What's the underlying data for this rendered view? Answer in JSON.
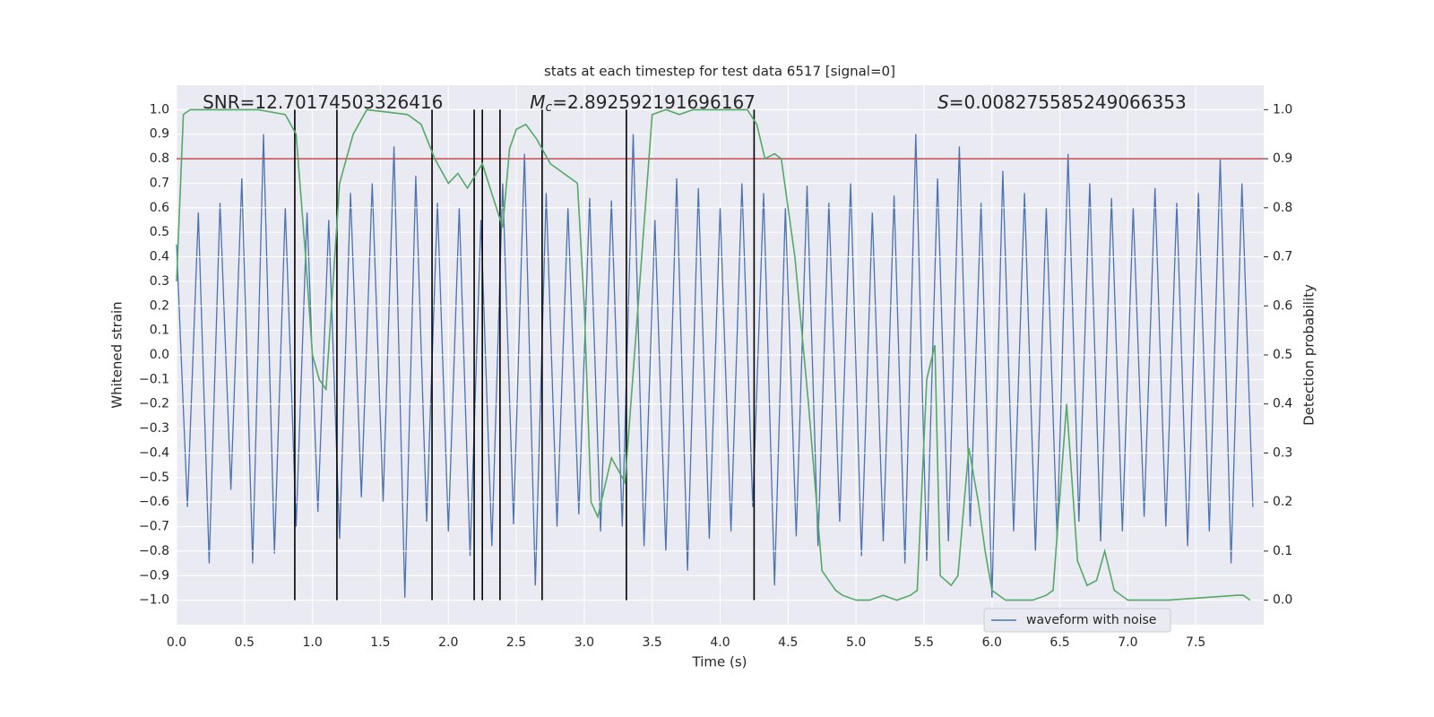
{
  "chart_data": {
    "type": "line",
    "title": "stats at each timestep for test data 6517 [signal=0]",
    "xlabel": "Time (s)",
    "ylabel": "Whitened strain",
    "y2label": "Detection probability",
    "xlim": [
      0,
      8
    ],
    "ylim": [
      -1.1,
      1.1
    ],
    "y2lim": [
      -0.05,
      1.05
    ],
    "grid": true,
    "background": "#eaeaf2",
    "legend_loc": "lower right",
    "xticks": [
      {
        "value": 0,
        "label": "0.0"
      },
      0.5,
      {
        "value": 1,
        "label": "1.0"
      },
      1.5,
      {
        "value": 2,
        "label": "2.0"
      },
      2.5,
      {
        "value": 3,
        "label": "3.0"
      },
      3.5,
      {
        "value": 4,
        "label": "4.0"
      },
      4.5,
      {
        "value": 5,
        "label": "5.0"
      },
      5.5,
      {
        "value": 6,
        "label": "6.0"
      },
      6.5,
      {
        "value": 7,
        "label": "7.0"
      },
      7.5
    ],
    "yticks": [
      {
        "value": -1,
        "label": "−1.0"
      },
      {
        "value": -0.9,
        "label": "−0.9"
      },
      {
        "value": -0.8,
        "label": "−0.8"
      },
      {
        "value": -0.7,
        "label": "−0.7"
      },
      {
        "value": -0.6,
        "label": "−0.6"
      },
      {
        "value": -0.5,
        "label": "−0.5"
      },
      {
        "value": -0.4,
        "label": "−0.4"
      },
      {
        "value": -0.3,
        "label": "−0.3"
      },
      {
        "value": -0.2,
        "label": "−0.2"
      },
      {
        "value": -0.1,
        "label": "−0.1"
      },
      {
        "value": 0,
        "label": "0.0"
      },
      0.1,
      0.2,
      0.3,
      0.4,
      0.5,
      0.6,
      0.7,
      0.8,
      0.9,
      {
        "value": 1,
        "label": "1.0"
      }
    ],
    "y2ticks": [
      {
        "value": 0,
        "label": "0.0"
      },
      0.1,
      0.2,
      0.3,
      0.4,
      0.5,
      0.6,
      0.7,
      0.8,
      0.9,
      {
        "value": 1,
        "label": "1.0"
      }
    ],
    "series": [
      {
        "name": "waveform with noise",
        "color": "#4c72b0",
        "x": [
          0,
          0.08,
          0.16,
          0.24,
          0.32,
          0.4,
          0.48,
          0.56,
          0.64,
          0.72,
          0.8,
          0.88,
          0.96,
          1.04,
          1.12,
          1.2,
          1.28,
          1.36,
          1.44,
          1.52,
          1.6,
          1.68,
          1.76,
          1.84,
          1.92,
          2,
          2.08,
          2.16,
          2.24,
          2.32,
          2.4,
          2.48,
          2.56,
          2.64,
          2.72,
          2.8,
          2.88,
          2.96,
          3.04,
          3.12,
          3.2,
          3.28,
          3.36,
          3.44,
          3.52,
          3.6,
          3.68,
          3.76,
          3.84,
          3.92,
          4,
          4.08,
          4.16,
          4.24,
          4.32,
          4.4,
          4.48,
          4.56,
          4.64,
          4.72,
          4.8,
          4.88,
          4.96,
          5.04,
          5.12,
          5.2,
          5.28,
          5.36,
          5.44,
          5.52,
          5.6,
          5.68,
          5.76,
          5.84,
          5.92,
          6,
          6.08,
          6.16,
          6.24,
          6.32,
          6.4,
          6.48,
          6.56,
          6.64,
          6.72,
          6.8,
          6.88,
          6.96,
          7.04,
          7.12,
          7.2,
          7.28,
          7.36,
          7.44,
          7.52,
          7.6,
          7.68,
          7.76,
          7.84,
          7.92
        ],
        "values": [
          0.45,
          -0.62,
          0.58,
          -0.85,
          0.62,
          -0.55,
          0.72,
          -0.85,
          0.9,
          -0.81,
          0.6,
          -0.7,
          0.58,
          -0.64,
          0.55,
          -0.75,
          0.66,
          -0.58,
          0.7,
          -0.6,
          0.85,
          -0.99,
          0.73,
          -0.68,
          0.62,
          -0.72,
          0.6,
          -0.82,
          0.55,
          -0.78,
          0.7,
          -0.69,
          0.82,
          -0.94,
          0.66,
          -0.7,
          0.6,
          -0.65,
          0.64,
          -0.72,
          0.63,
          -0.7,
          0.9,
          -0.78,
          0.55,
          -0.8,
          0.72,
          -0.88,
          0.68,
          -0.75,
          0.6,
          -0.72,
          0.7,
          -0.62,
          0.66,
          -0.94,
          0.6,
          -0.74,
          0.69,
          -0.78,
          0.62,
          -0.68,
          0.7,
          -0.82,
          0.58,
          -0.76,
          0.65,
          -0.85,
          0.9,
          -0.84,
          0.72,
          -0.76,
          0.85,
          -0.7,
          0.62,
          -0.99,
          0.75,
          -0.72,
          0.66,
          -0.8,
          0.6,
          -0.75,
          0.82,
          -0.68,
          0.7,
          -0.76,
          0.64,
          -0.72,
          0.6,
          -0.66,
          0.68,
          -0.7,
          0.62,
          -0.78,
          0.66,
          -0.72,
          0.8,
          -0.85,
          0.7,
          -0.62
        ]
      },
      {
        "color": "#55a868",
        "axis": "y2",
        "x": [
          0,
          0.05,
          0.1,
          0.6,
          0.8,
          0.88,
          0.95,
          1.0,
          1.05,
          1.1,
          1.2,
          1.3,
          1.4,
          1.7,
          1.8,
          1.9,
          2.0,
          2.07,
          2.14,
          2.25,
          2.33,
          2.4,
          2.45,
          2.5,
          2.57,
          2.65,
          2.75,
          2.85,
          2.95,
          3.0,
          3.05,
          3.1,
          3.2,
          3.3,
          3.5,
          3.6,
          3.7,
          3.8,
          4.2,
          4.27,
          4.33,
          4.4,
          4.45,
          4.55,
          4.65,
          4.75,
          4.85,
          4.9,
          5.0,
          5.1,
          5.2,
          5.3,
          5.4,
          5.45,
          5.52,
          5.58,
          5.62,
          5.7,
          5.75,
          5.83,
          5.9,
          5.95,
          6.0,
          6.1,
          6.3,
          6.4,
          6.45,
          6.55,
          6.63,
          6.7,
          6.77,
          6.83,
          6.9,
          7.0,
          7.3,
          7.8,
          7.85,
          7.9
        ],
        "values": [
          0.65,
          0.99,
          1.0,
          1.0,
          0.99,
          0.95,
          0.7,
          0.5,
          0.45,
          0.43,
          0.85,
          0.95,
          1.0,
          0.99,
          0.97,
          0.9,
          0.85,
          0.87,
          0.84,
          0.89,
          0.82,
          0.76,
          0.92,
          0.96,
          0.97,
          0.94,
          0.89,
          0.87,
          0.85,
          0.6,
          0.2,
          0.17,
          0.29,
          0.24,
          0.99,
          1.0,
          0.99,
          1.0,
          1.0,
          0.97,
          0.9,
          0.91,
          0.9,
          0.7,
          0.4,
          0.06,
          0.02,
          0.01,
          0.0,
          0.0,
          0.01,
          0.0,
          0.01,
          0.02,
          0.45,
          0.52,
          0.05,
          0.03,
          0.05,
          0.31,
          0.2,
          0.1,
          0.02,
          0.0,
          0.0,
          0.01,
          0.02,
          0.4,
          0.08,
          0.03,
          0.04,
          0.1,
          0.02,
          0.0,
          0.0,
          0.01,
          0.01,
          0.0
        ]
      }
    ],
    "vlines": {
      "x": [
        0.87,
        1.18,
        1.88,
        2.19,
        2.25,
        2.38,
        2.69,
        3.31,
        4.25
      ],
      "ymin": -1,
      "ymax": 1,
      "color": "#000000"
    },
    "hline": {
      "y": 0.8,
      "color": "#c44e52"
    },
    "annotations": [
      {
        "text": "SNR=12.70174503326416"
      },
      {
        "symbol": "M",
        "subscript": "c",
        "text": "=2.892592191696167"
      },
      {
        "symbol": "S",
        "text": "=0.008275585249066353"
      }
    ]
  }
}
